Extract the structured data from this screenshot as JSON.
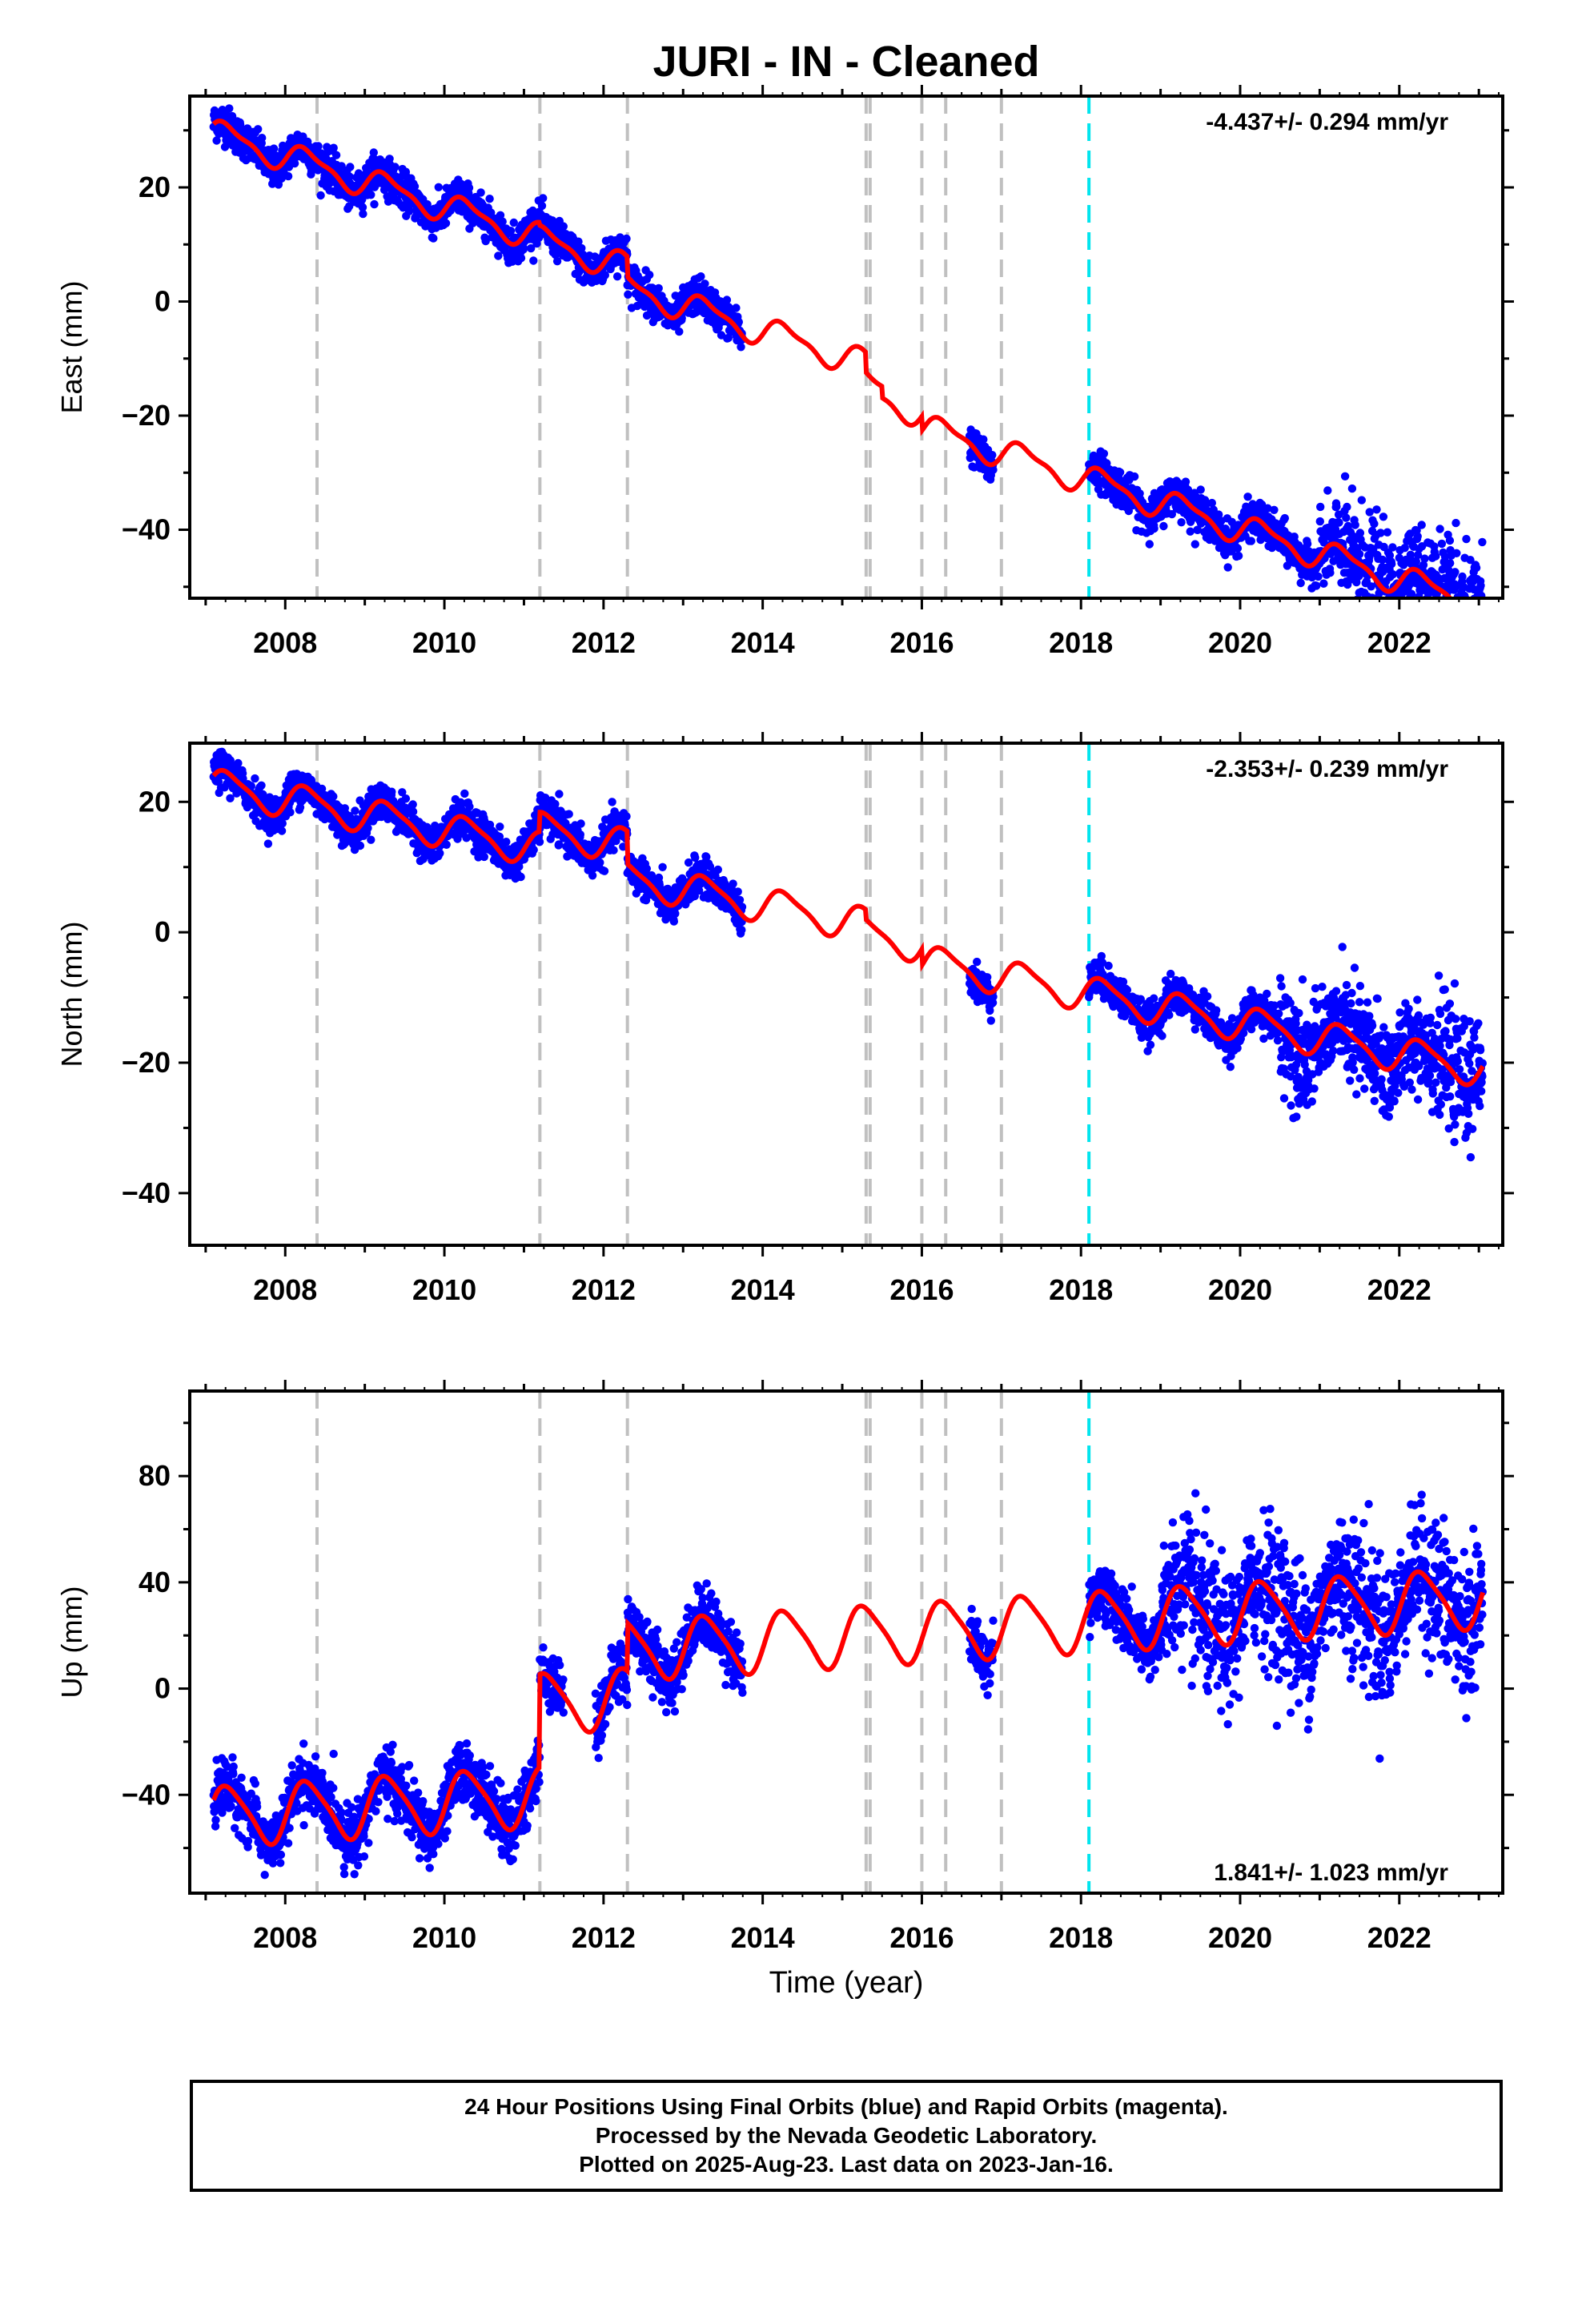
{
  "figure": {
    "title": "JURI  - IN - Cleaned",
    "xlabel": "Time (year)"
  },
  "caption": {
    "line1": "24 Hour Positions Using Final Orbits (blue) and Rapid Orbits (magenta).",
    "line2": "Processed by the Nevada Geodetic Laboratory.",
    "line3": "Plotted on 2025-Aug-23. Last data on 2023-Jan-16."
  },
  "colors": {
    "final_orbits": "#0000ff",
    "rapid_orbits": "#ff00ff",
    "model": "#ff0000",
    "equipment_change": "#c0c0c0",
    "earthquake": "#00e5ee"
  },
  "chart_data": [
    {
      "type": "scatter",
      "ylabel": "East (mm)",
      "rate_label": "-4.437+/- 0.294 mm/yr",
      "xlim": [
        2006.8,
        2023.3
      ],
      "ylim": [
        -52,
        36
      ],
      "xticks": [
        2008,
        2010,
        2012,
        2014,
        2016,
        2018,
        2020,
        2022
      ],
      "yticks": [
        20,
        0,
        -20,
        -40
      ],
      "grey_dashed_lines": [
        2008.4,
        2011.2,
        2012.3,
        2015.3,
        2015.35,
        2016.0,
        2016.3,
        2017.0
      ],
      "cyan_dashed_lines": [
        2018.1
      ],
      "data_segments": [
        [
          2007.1,
          2013.75
        ],
        [
          2016.6,
          2016.9
        ],
        [
          2018.1,
          2023.05
        ]
      ],
      "model": {
        "rate": -4.437,
        "amp1": 2.3,
        "amp2": 0.8,
        "noise": 1.6,
        "gaps": [
          [
            2011.2,
            -0.5
          ],
          [
            2012.3,
            -3.5
          ],
          [
            2015.3,
            -3.5
          ],
          [
            2015.5,
            -2.0
          ],
          [
            2016.0,
            -2.5
          ]
        ],
        "offset0": 29.5,
        "t0": 2007.1,
        "extra_scatter_after": 2021.0,
        "extra_scatter": 3.5
      }
    },
    {
      "type": "scatter",
      "ylabel": "North (mm)",
      "rate_label": "-2.353+/- 0.239 mm/yr",
      "xlim": [
        2006.8,
        2023.3
      ],
      "ylim": [
        -48,
        29
      ],
      "xticks": [
        2008,
        2010,
        2012,
        2014,
        2016,
        2018,
        2020,
        2022
      ],
      "yticks": [
        20,
        0,
        -20,
        -40
      ],
      "grey_dashed_lines": [
        2008.4,
        2011.2,
        2012.3,
        2015.3,
        2015.35,
        2016.0,
        2016.3,
        2017.0
      ],
      "cyan_dashed_lines": [
        2018.1
      ],
      "data_segments": [
        [
          2007.1,
          2013.75
        ],
        [
          2016.6,
          2016.9
        ],
        [
          2018.1,
          2023.05
        ]
      ],
      "model": {
        "rate": -2.353,
        "amp1": 2.5,
        "amp2": 0.6,
        "noise": 1.4,
        "gaps": [
          [
            2011.2,
            3.0
          ],
          [
            2012.3,
            -5.0
          ],
          [
            2015.3,
            -1.5
          ],
          [
            2016.0,
            -2.5
          ]
        ],
        "offset0": 22.5,
        "t0": 2007.1,
        "extra_scatter_after": 2020.5,
        "extra_scatter": 3.0
      }
    },
    {
      "type": "scatter",
      "ylabel": "Up (mm)",
      "rate_label": "1.841+/- 1.023 mm/yr",
      "xlim": [
        2006.8,
        2023.3
      ],
      "ylim": [
        -77,
        112
      ],
      "xticks": [
        2008,
        2010,
        2012,
        2014,
        2016,
        2018,
        2020,
        2022
      ],
      "yticks": [
        80,
        40,
        0,
        -40
      ],
      "grey_dashed_lines": [
        2008.4,
        2011.2,
        2012.3,
        2015.3,
        2015.35,
        2016.0,
        2016.3,
        2017.0
      ],
      "cyan_dashed_lines": [
        2018.1
      ],
      "data_segments": [
        [
          2007.1,
          2011.5
        ],
        [
          2011.9,
          2013.75
        ],
        [
          2016.6,
          2016.9
        ],
        [
          2018.1,
          2023.05
        ]
      ],
      "model": {
        "rate": 1.841,
        "amp1": 11.0,
        "amp2": 2.0,
        "noise": 5.5,
        "gaps": [
          [
            2011.2,
            35.0
          ],
          [
            2012.3,
            18.0
          ]
        ],
        "offset0": -48.0,
        "t0": 2007.1,
        "extra_scatter_after": 2019.0,
        "extra_scatter": 9.0
      }
    }
  ]
}
